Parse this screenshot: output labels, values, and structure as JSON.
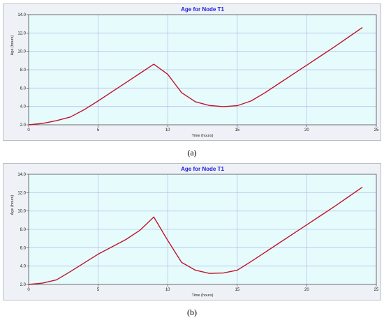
{
  "colors": {
    "plot_bg": "#e6fbfc",
    "grid": "#b9c3ea",
    "line": "#c0142b",
    "title": "#1a1adb"
  },
  "chart_data": [
    {
      "type": "line",
      "title": "Age for Node T1",
      "xlabel": "Time (hours)",
      "ylabel": "Age (hours)",
      "xlim": [
        0,
        25
      ],
      "ylim": [
        2.0,
        14.0
      ],
      "xticks": [
        "0",
        "5",
        "10",
        "15",
        "20",
        "25"
      ],
      "yticks": [
        "2.0",
        "4.0",
        "6.0",
        "8.0",
        "10.0",
        "12.0",
        "14.0"
      ],
      "grid": true,
      "x": [
        0,
        1,
        2,
        3,
        4,
        5,
        6,
        7,
        8,
        9,
        10,
        11,
        12,
        13,
        14,
        15,
        16,
        17,
        18,
        19,
        20,
        21,
        22,
        23,
        24
      ],
      "y": [
        2.0,
        2.15,
        2.45,
        2.85,
        3.65,
        4.6,
        5.6,
        6.6,
        7.6,
        8.6,
        7.5,
        5.5,
        4.5,
        4.1,
        3.98,
        4.08,
        4.6,
        5.5,
        6.5,
        7.5,
        8.5,
        9.5,
        10.5,
        11.55,
        12.6
      ],
      "caption": "(a)"
    },
    {
      "type": "line",
      "title": "Age for Node T1",
      "xlabel": "Time (hours)",
      "ylabel": "Age (hours)",
      "xlim": [
        0,
        25
      ],
      "ylim": [
        2.0,
        14.0
      ],
      "xticks": [
        "0",
        "5",
        "10",
        "15",
        "20",
        "25"
      ],
      "yticks": [
        "2.0",
        "4.0",
        "6.0",
        "8.0",
        "10.0",
        "12.0",
        "14.0"
      ],
      "grid": true,
      "x": [
        0,
        1,
        2,
        3,
        4,
        5,
        6,
        7,
        8,
        9,
        10,
        11,
        12,
        13,
        14,
        15,
        16,
        17,
        18,
        19,
        20,
        21,
        22,
        23,
        24
      ],
      "y": [
        2.0,
        2.15,
        2.5,
        3.4,
        4.35,
        5.3,
        6.1,
        6.9,
        7.9,
        9.35,
        6.8,
        4.4,
        3.55,
        3.2,
        3.25,
        3.55,
        4.5,
        5.5,
        6.5,
        7.5,
        8.5,
        9.5,
        10.5,
        11.55,
        12.6
      ],
      "caption": "(b)"
    }
  ]
}
